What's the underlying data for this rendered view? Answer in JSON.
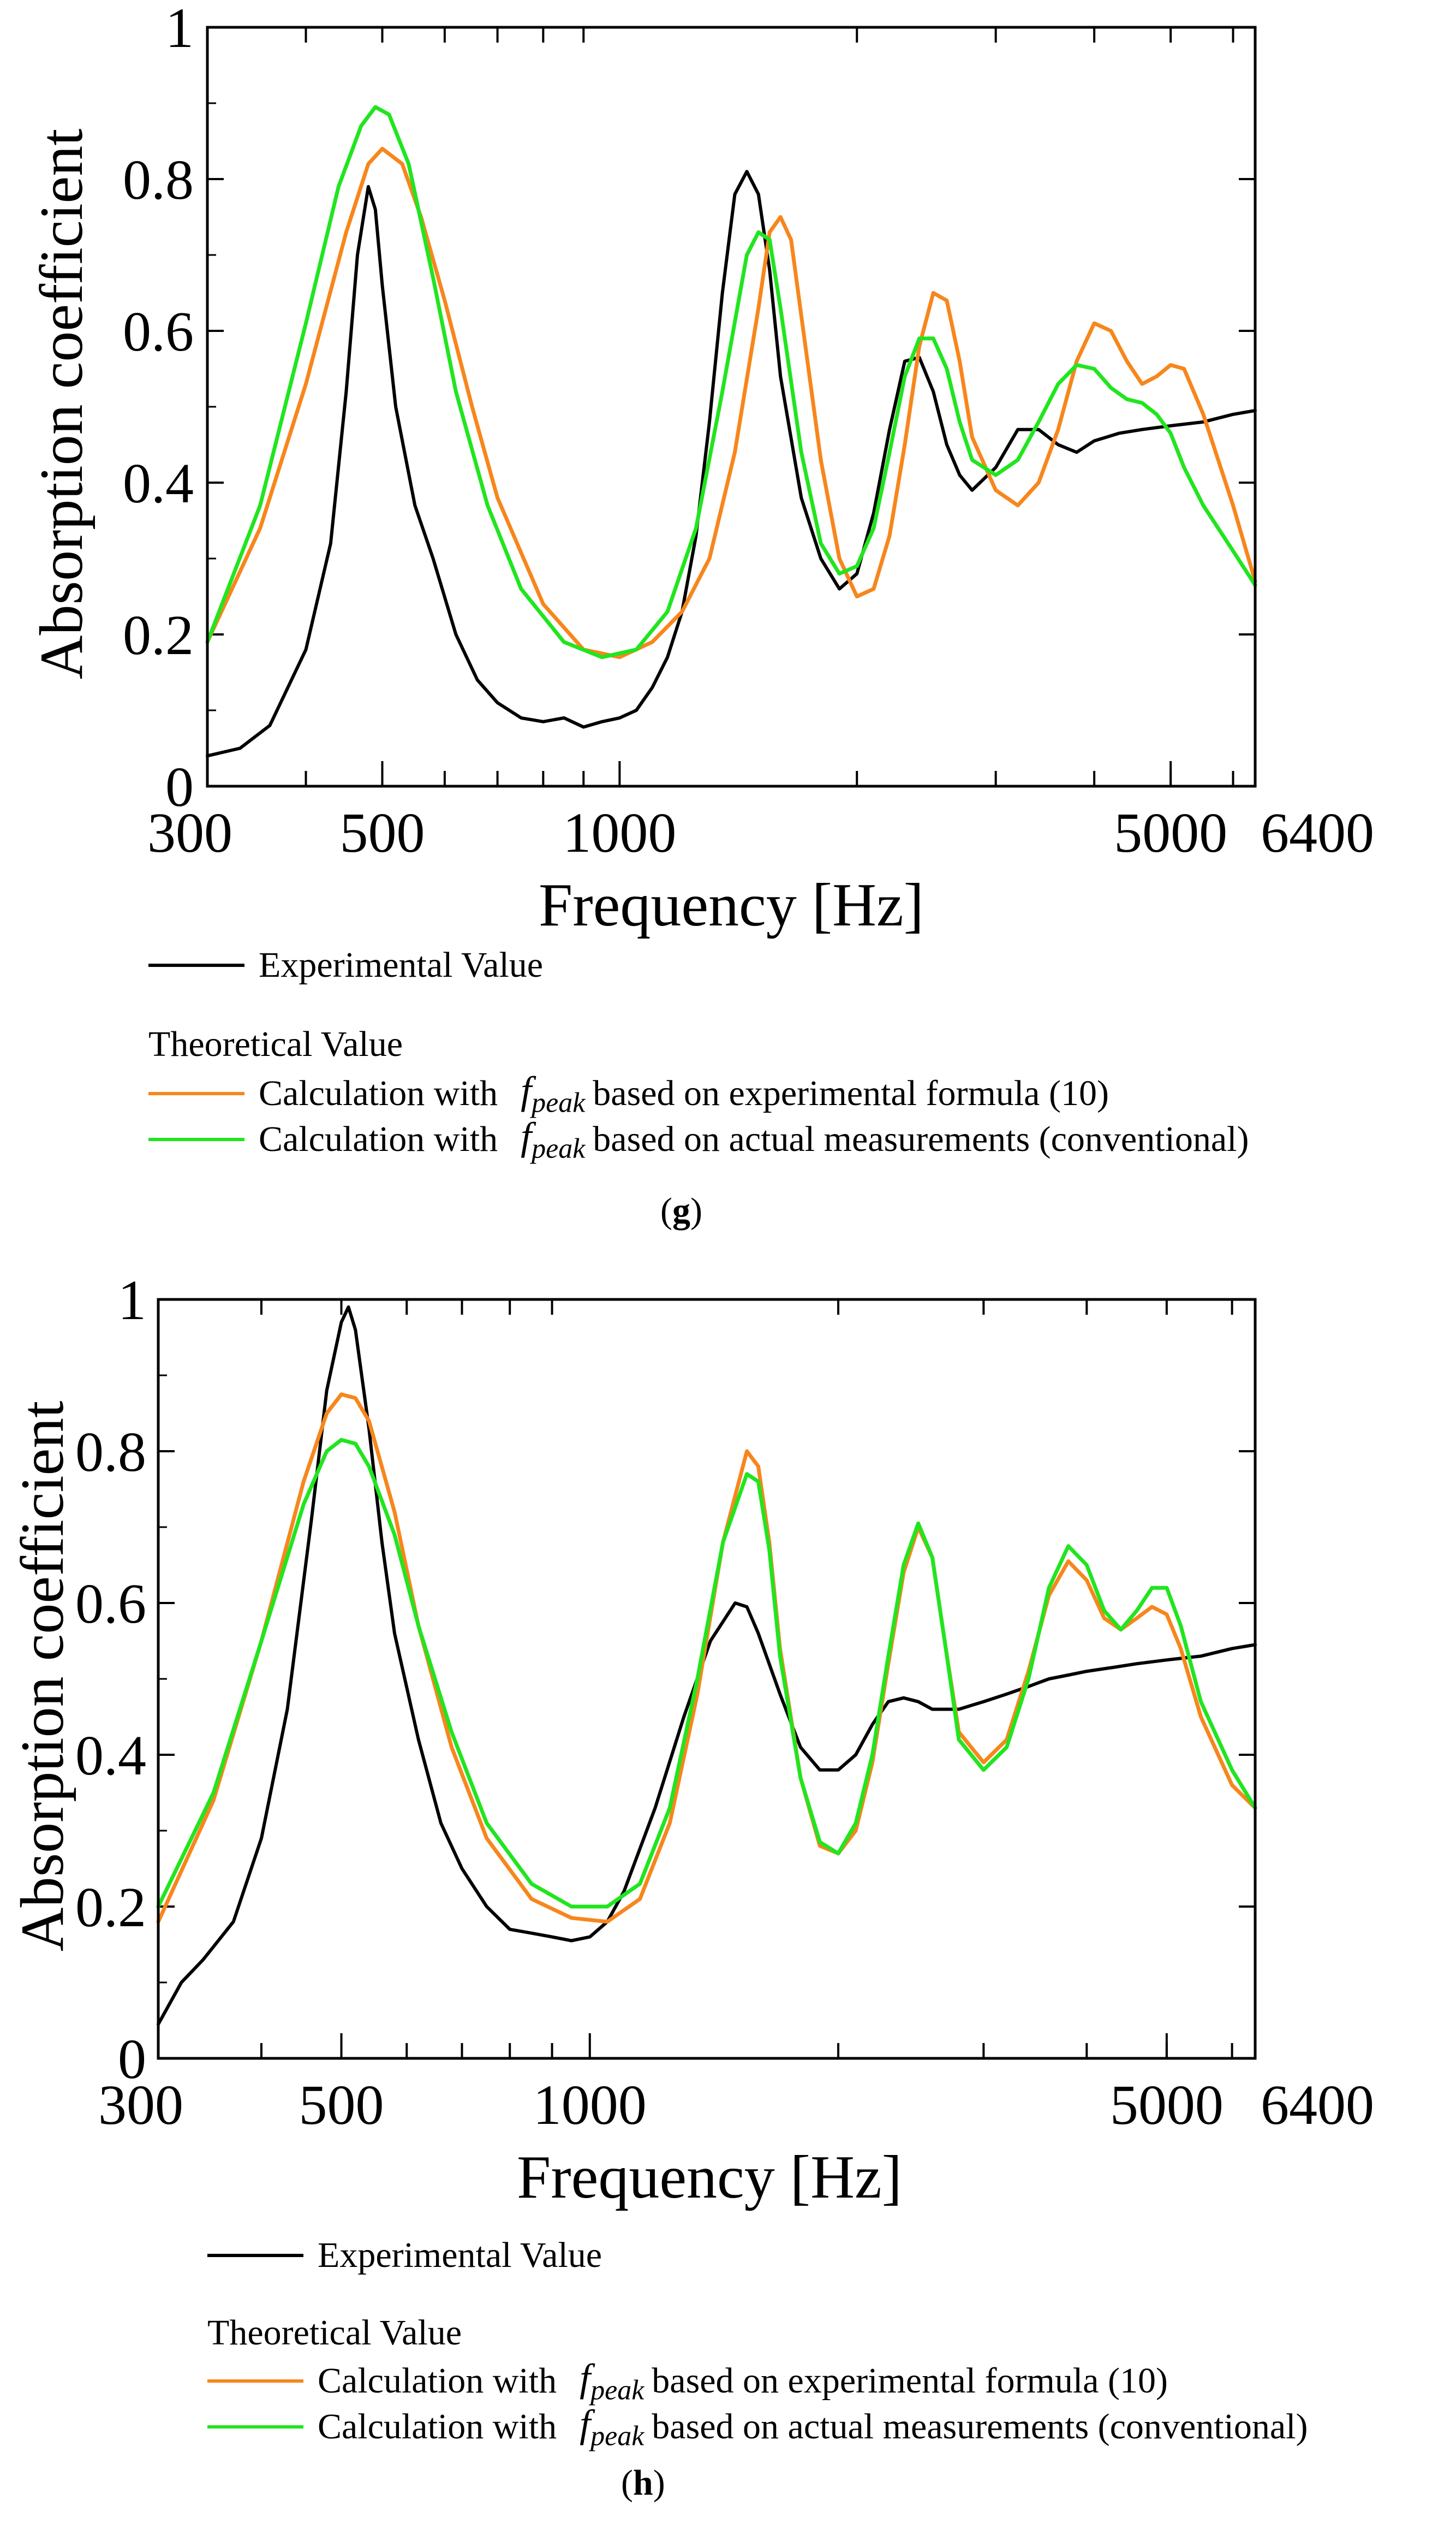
{
  "colors": {
    "experimental": "#000000",
    "formula": "#F7861C",
    "conventional": "#21E51F",
    "axis": "#000000"
  },
  "legend": {
    "experimental": "Experimental Value",
    "theoretical_heading": "Theoretical Value",
    "calc_prefix": "Calculation with",
    "fpeak_f": "f",
    "fpeak_sub": "peak",
    "formula_suffix": "based on experimental formula (10)",
    "conventional_suffix": "based on actual measurements (conventional)"
  },
  "captions": {
    "g": {
      "open": "(",
      "letter": "g",
      "close": ")"
    },
    "h": {
      "open": "(",
      "letter": "h",
      "close": ")"
    }
  },
  "chart_data": [
    {
      "id": "g",
      "type": "line",
      "xscale": "log",
      "xlim": [
        300,
        6400
      ],
      "ylim": [
        0,
        1
      ],
      "xlabel": "Frequency [Hz]",
      "ylabel": "Absorption coefficient",
      "xticks_major": [
        300,
        500,
        1000,
        5000,
        6400
      ],
      "yticks": [
        0,
        0.2,
        0.4,
        0.6,
        0.8,
        1
      ],
      "ytick_labels": [
        "0",
        "0.2",
        "0.4",
        "0.6",
        "0.8",
        "1"
      ],
      "series": [
        {
          "key": "experimental",
          "name": "Experimental Value",
          "x": [
            300,
            330,
            360,
            400,
            430,
            450,
            465,
            480,
            490,
            500,
            520,
            550,
            580,
            620,
            660,
            700,
            750,
            800,
            850,
            900,
            950,
            1000,
            1050,
            1100,
            1150,
            1200,
            1250,
            1300,
            1350,
            1400,
            1450,
            1500,
            1550,
            1600,
            1700,
            1800,
            1900,
            2000,
            2100,
            2200,
            2300,
            2400,
            2500,
            2600,
            2700,
            2800,
            3000,
            3200,
            3400,
            3600,
            3800,
            4000,
            4300,
            4600,
            5000,
            5500,
            6000,
            6400
          ],
          "y": [
            0.04,
            0.05,
            0.08,
            0.18,
            0.32,
            0.52,
            0.7,
            0.79,
            0.76,
            0.66,
            0.5,
            0.37,
            0.3,
            0.2,
            0.14,
            0.11,
            0.09,
            0.085,
            0.09,
            0.078,
            0.085,
            0.09,
            0.1,
            0.13,
            0.17,
            0.23,
            0.33,
            0.48,
            0.65,
            0.78,
            0.81,
            0.78,
            0.68,
            0.54,
            0.38,
            0.3,
            0.26,
            0.28,
            0.36,
            0.47,
            0.56,
            0.565,
            0.52,
            0.45,
            0.41,
            0.39,
            0.42,
            0.47,
            0.47,
            0.45,
            0.44,
            0.455,
            0.465,
            0.47,
            0.475,
            0.48,
            0.49,
            0.495
          ]
        },
        {
          "key": "formula",
          "name": "Calculation with fpeak based on experimental formula (10)",
          "x": [
            300,
            350,
            400,
            450,
            480,
            500,
            530,
            560,
            600,
            650,
            700,
            800,
            900,
            1000,
            1100,
            1200,
            1300,
            1400,
            1500,
            1550,
            1600,
            1650,
            1700,
            1800,
            1900,
            2000,
            2100,
            2200,
            2300,
            2400,
            2500,
            2600,
            2700,
            2800,
            3000,
            3200,
            3400,
            3600,
            3800,
            4000,
            4200,
            4400,
            4600,
            4800,
            5000,
            5200,
            5500,
            6000,
            6400
          ],
          "y": [
            0.19,
            0.34,
            0.53,
            0.73,
            0.82,
            0.84,
            0.82,
            0.75,
            0.64,
            0.5,
            0.38,
            0.24,
            0.18,
            0.17,
            0.19,
            0.23,
            0.3,
            0.44,
            0.63,
            0.73,
            0.75,
            0.72,
            0.62,
            0.43,
            0.3,
            0.25,
            0.26,
            0.33,
            0.45,
            0.58,
            0.65,
            0.64,
            0.56,
            0.46,
            0.39,
            0.37,
            0.4,
            0.47,
            0.56,
            0.61,
            0.6,
            0.56,
            0.53,
            0.54,
            0.555,
            0.55,
            0.49,
            0.37,
            0.27
          ]
        },
        {
          "key": "conventional",
          "name": "Calculation with fpeak based on actual measurements (conventional)",
          "x": [
            300,
            350,
            400,
            440,
            470,
            490,
            510,
            540,
            580,
            620,
            680,
            750,
            850,
            950,
            1050,
            1150,
            1250,
            1350,
            1450,
            1500,
            1550,
            1600,
            1700,
            1800,
            1900,
            2000,
            2100,
            2200,
            2300,
            2400,
            2500,
            2600,
            2700,
            2800,
            3000,
            3200,
            3400,
            3600,
            3800,
            4000,
            4200,
            4400,
            4600,
            4800,
            5000,
            5200,
            5500,
            6000,
            6400
          ],
          "y": [
            0.19,
            0.37,
            0.61,
            0.79,
            0.87,
            0.895,
            0.885,
            0.82,
            0.67,
            0.52,
            0.37,
            0.26,
            0.19,
            0.17,
            0.18,
            0.23,
            0.34,
            0.52,
            0.7,
            0.73,
            0.72,
            0.63,
            0.44,
            0.32,
            0.28,
            0.29,
            0.34,
            0.44,
            0.54,
            0.59,
            0.59,
            0.55,
            0.48,
            0.43,
            0.41,
            0.43,
            0.48,
            0.53,
            0.555,
            0.55,
            0.525,
            0.51,
            0.505,
            0.49,
            0.465,
            0.42,
            0.37,
            0.31,
            0.265
          ]
        }
      ]
    },
    {
      "id": "h",
      "type": "line",
      "xscale": "log",
      "xlim": [
        300,
        6400
      ],
      "ylim": [
        0,
        1
      ],
      "xlabel": "Frequency [Hz]",
      "ylabel": "Absorption coefficient",
      "xticks_major": [
        300,
        500,
        1000,
        5000,
        6400
      ],
      "yticks": [
        0,
        0.2,
        0.4,
        0.6,
        0.8,
        1
      ],
      "ytick_labels": [
        "0",
        "0.2",
        "0.4",
        "0.6",
        "0.8",
        "1"
      ],
      "series": [
        {
          "key": "experimental",
          "name": "Experimental Value",
          "x": [
            300,
            320,
            340,
            370,
            400,
            430,
            460,
            480,
            500,
            510,
            520,
            540,
            560,
            580,
            620,
            660,
            700,
            750,
            800,
            850,
            900,
            950,
            1000,
            1050,
            1100,
            1200,
            1300,
            1400,
            1500,
            1550,
            1600,
            1700,
            1800,
            1900,
            2000,
            2100,
            2200,
            2300,
            2400,
            2500,
            2600,
            2700,
            2800,
            3000,
            3200,
            3400,
            3600,
            3800,
            4000,
            4300,
            4600,
            5000,
            5500,
            6000,
            6400
          ],
          "y": [
            0.045,
            0.1,
            0.13,
            0.18,
            0.29,
            0.46,
            0.71,
            0.88,
            0.97,
            0.99,
            0.96,
            0.83,
            0.68,
            0.56,
            0.42,
            0.31,
            0.25,
            0.2,
            0.17,
            0.165,
            0.16,
            0.155,
            0.16,
            0.18,
            0.22,
            0.33,
            0.45,
            0.55,
            0.6,
            0.595,
            0.56,
            0.48,
            0.41,
            0.38,
            0.38,
            0.4,
            0.44,
            0.47,
            0.475,
            0.47,
            0.46,
            0.46,
            0.46,
            0.47,
            0.48,
            0.49,
            0.5,
            0.505,
            0.51,
            0.515,
            0.52,
            0.525,
            0.53,
            0.54,
            0.545
          ]
        },
        {
          "key": "formula",
          "name": "Calculation with fpeak based on experimental formula (10)",
          "x": [
            300,
            350,
            400,
            450,
            480,
            500,
            520,
            540,
            580,
            620,
            680,
            750,
            850,
            950,
            1050,
            1150,
            1250,
            1350,
            1450,
            1550,
            1600,
            1650,
            1700,
            1800,
            1900,
            2000,
            2100,
            2200,
            2300,
            2400,
            2500,
            2600,
            2700,
            2800,
            3000,
            3200,
            3400,
            3600,
            3800,
            4000,
            4200,
            4400,
            4600,
            4800,
            5000,
            5200,
            5500,
            6000,
            6400
          ],
          "y": [
            0.18,
            0.34,
            0.55,
            0.76,
            0.85,
            0.875,
            0.87,
            0.84,
            0.72,
            0.57,
            0.41,
            0.29,
            0.21,
            0.185,
            0.18,
            0.21,
            0.31,
            0.48,
            0.68,
            0.8,
            0.78,
            0.68,
            0.54,
            0.37,
            0.28,
            0.27,
            0.3,
            0.39,
            0.52,
            0.64,
            0.7,
            0.66,
            0.54,
            0.43,
            0.39,
            0.42,
            0.51,
            0.61,
            0.655,
            0.63,
            0.58,
            0.565,
            0.58,
            0.595,
            0.585,
            0.54,
            0.45,
            0.36,
            0.33
          ]
        },
        {
          "key": "conventional",
          "name": "Calculation with fpeak based on actual measurements (conventional)",
          "x": [
            300,
            350,
            400,
            450,
            480,
            500,
            520,
            540,
            580,
            620,
            680,
            750,
            850,
            950,
            1050,
            1150,
            1250,
            1350,
            1450,
            1550,
            1600,
            1650,
            1700,
            1800,
            1900,
            2000,
            2100,
            2200,
            2300,
            2400,
            2500,
            2600,
            2700,
            2800,
            3000,
            3200,
            3400,
            3600,
            3800,
            4000,
            4200,
            4400,
            4600,
            4800,
            5000,
            5200,
            5500,
            6000,
            6400
          ],
          "y": [
            0.2,
            0.35,
            0.55,
            0.73,
            0.8,
            0.815,
            0.81,
            0.78,
            0.69,
            0.57,
            0.43,
            0.31,
            0.23,
            0.2,
            0.2,
            0.23,
            0.33,
            0.5,
            0.68,
            0.77,
            0.76,
            0.67,
            0.53,
            0.37,
            0.285,
            0.27,
            0.31,
            0.4,
            0.53,
            0.65,
            0.705,
            0.66,
            0.54,
            0.42,
            0.38,
            0.41,
            0.5,
            0.62,
            0.675,
            0.65,
            0.59,
            0.565,
            0.59,
            0.62,
            0.62,
            0.57,
            0.47,
            0.38,
            0.33
          ]
        }
      ]
    }
  ]
}
